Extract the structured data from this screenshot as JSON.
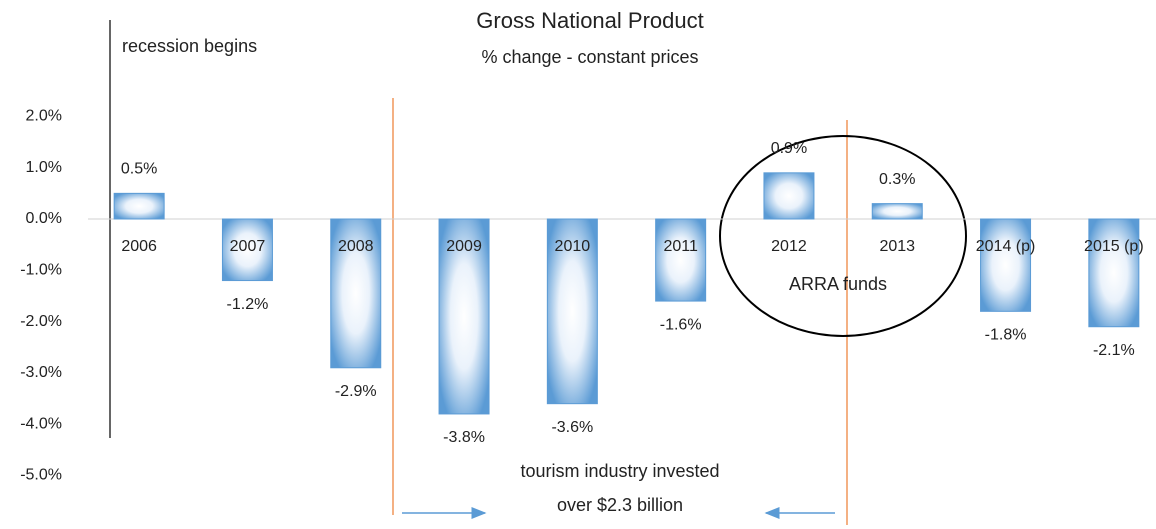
{
  "chart_data": {
    "type": "bar",
    "title": "Gross National Product",
    "subtitle": "% change - constant prices",
    "categories": [
      "2006",
      "2007",
      "2008",
      "2009",
      "2010",
      "2011",
      "2012",
      "2013",
      "2014 (p)",
      "2015 (p)"
    ],
    "values": [
      0.5,
      -1.2,
      -2.9,
      -3.8,
      -3.6,
      -1.6,
      0.9,
      0.3,
      -1.8,
      -2.1
    ],
    "value_labels": [
      "0.5%",
      "-1.2%",
      "-2.9%",
      "-3.8%",
      "-3.6%",
      "-1.6%",
      "0.9%",
      "0.3%",
      "-1.8%",
      "-2.1%"
    ],
    "color": "#5b9bd5",
    "ylim": [
      -5,
      2
    ],
    "yticks": [
      {
        "value": 2,
        "label": "2.0%"
      },
      {
        "value": 1,
        "label": "1.0%"
      },
      {
        "value": 0,
        "label": "0.0%"
      },
      {
        "value": -1,
        "label": "-1.0%"
      },
      {
        "value": -2,
        "label": "-2.0%"
      },
      {
        "value": -3,
        "label": "-3.0%"
      },
      {
        "value": -4,
        "label": "-4.0%"
      },
      {
        "value": -5,
        "label": "-5.0%"
      }
    ],
    "grid": false,
    "annotations": [
      "recession begins",
      "tourism industry invested",
      "over $2.3 billion",
      "ARRA funds"
    ]
  }
}
